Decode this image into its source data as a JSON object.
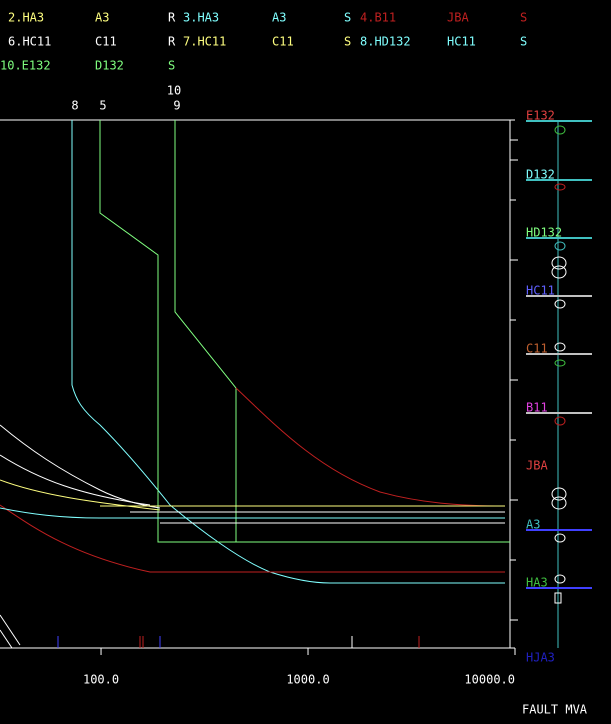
{
  "legend": [
    [
      {
        "text": "2.HA3",
        "color": "#ffff80"
      },
      {
        "text": "A3",
        "color": "#ffff80"
      },
      {
        "text": "R",
        "color": "#ffffff"
      },
      {
        "text": "3.HA3",
        "color": "#80ffff"
      },
      {
        "text": "A3",
        "color": "#80ffff"
      },
      {
        "text": "S",
        "color": "#80ffff"
      },
      {
        "text": "4.B11",
        "color": "#c02020"
      },
      {
        "text": "JBA",
        "color": "#c02020"
      },
      {
        "text": "S",
        "color": "#c02020"
      }
    ],
    [
      {
        "text": "6.HC11",
        "color": "#ffffff"
      },
      {
        "text": "C11",
        "color": "#ffffff"
      },
      {
        "text": "R",
        "color": "#ffffff"
      },
      {
        "text": "7.HC11",
        "color": "#ffff80"
      },
      {
        "text": "C11",
        "color": "#ffff80"
      },
      {
        "text": "S",
        "color": "#ffff80"
      },
      {
        "text": "8.HD132",
        "color": "#80ffff"
      },
      {
        "text": "HC11",
        "color": "#80ffff"
      },
      {
        "text": "S",
        "color": "#80ffff"
      }
    ],
    [
      {
        "text": "10.E132",
        "color": "#80ff80"
      },
      {
        "text": "D132",
        "color": "#80ff80"
      },
      {
        "text": "S",
        "color": "#80ff80"
      }
    ]
  ],
  "device_markers": [
    "8",
    "5",
    "10",
    "9"
  ],
  "x_axis": {
    "label": "FAULT MVA",
    "xlim": [
      32.5,
      10000
    ],
    "xticks": [
      {
        "value": 100,
        "label": "100.0"
      },
      {
        "value": 1000,
        "label": "1000.0"
      },
      {
        "value": 10000,
        "label": "10000.0"
      }
    ]
  },
  "buses": [
    {
      "label": "E132",
      "color": "#e04040",
      "line_color": "#40c0c0"
    },
    {
      "label": "D132",
      "color": "#80ffff",
      "line_color": "#40c0c0"
    },
    {
      "label": "HD132",
      "color": "#80ff80",
      "line_color": "#40c0c0"
    },
    {
      "label": "HC11",
      "color": "#6060ff",
      "line_color": "#c0c0c0"
    },
    {
      "label": "C11",
      "color": "#c06030",
      "line_color": "#c0c0c0"
    },
    {
      "label": "B11",
      "color": "#e040e0",
      "line_color": "#c0c0c0"
    },
    {
      "label": "JBA",
      "color": "#e04040",
      "line_color": null
    },
    {
      "label": "A3",
      "color": "#40c0c0",
      "line_color": "#4040ff"
    },
    {
      "label": "HA3",
      "color": "#40c040",
      "line_color": "#4040ff"
    },
    {
      "label": "HJA3",
      "color": "#2020c0",
      "line_color": null
    }
  ]
}
